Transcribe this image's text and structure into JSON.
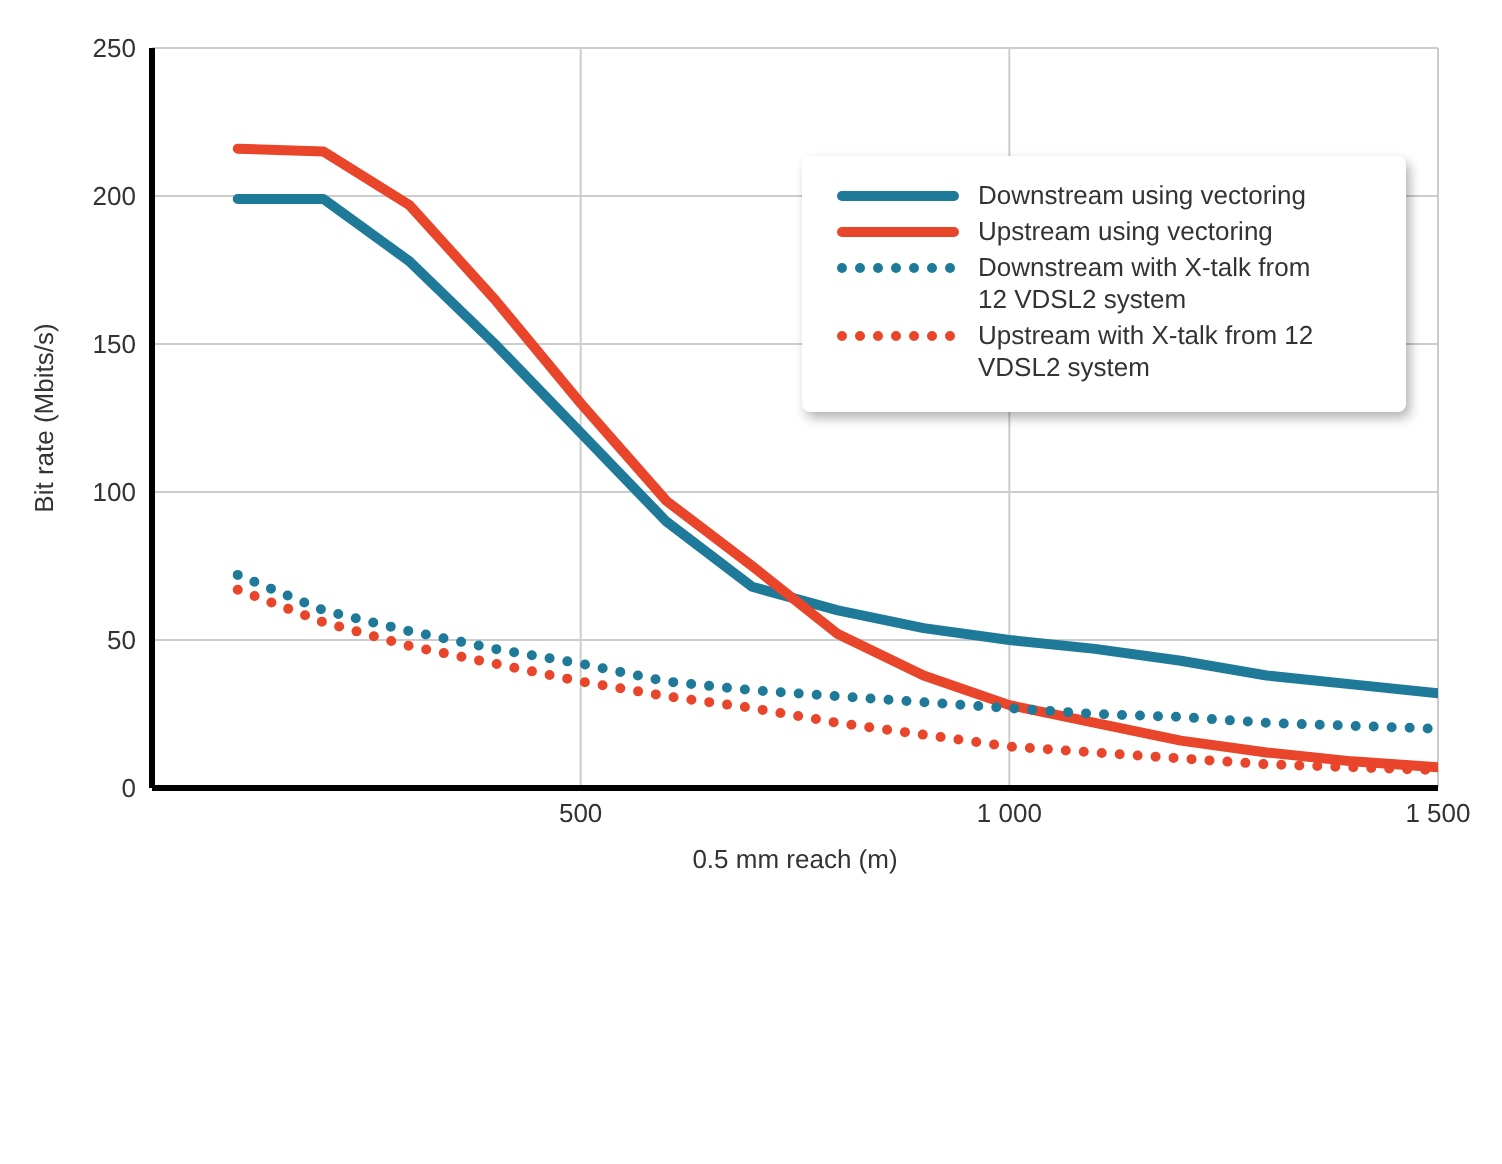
{
  "chart_data": {
    "type": "line",
    "xlabel": "0.5 mm reach (m)",
    "ylabel": "Bit rate (Mbits/s)",
    "x": [
      100,
      200,
      300,
      400,
      500,
      600,
      700,
      800,
      900,
      1000,
      1100,
      1200,
      1300,
      1400,
      1500
    ],
    "series": [
      {
        "name": "Downstream using vectoring",
        "color": "#1f7a99",
        "line_style": "solid",
        "values": [
          199,
          199,
          178,
          150,
          120,
          90,
          68,
          60,
          54,
          50,
          47,
          43,
          38,
          35,
          32
        ]
      },
      {
        "name": "Upstream using vectoring",
        "color": "#e8452a",
        "line_style": "solid",
        "values": [
          216,
          215,
          197,
          165,
          130,
          97,
          75,
          52,
          38,
          28,
          22,
          16,
          12,
          9,
          7
        ]
      },
      {
        "name": "Downstream with X-talk from 12 VDSL2 system",
        "color": "#1f7a99",
        "line_style": "dotted",
        "values": [
          72,
          60,
          53,
          47,
          42,
          36,
          33,
          31,
          29,
          27,
          25,
          24,
          22,
          21,
          20
        ]
      },
      {
        "name": "Upstream with X-talk from 12 VDSL2 system",
        "color": "#e8452a",
        "line_style": "dotted",
        "values": [
          67,
          56,
          48,
          42,
          36,
          31,
          27,
          22,
          18,
          14,
          12,
          10,
          8,
          7,
          6
        ]
      }
    ],
    "xlim": [
      0,
      1500
    ],
    "xticks": [
      500,
      {
        "value": 1000,
        "label": "1 000"
      },
      {
        "value": 1500,
        "label": "1 500"
      }
    ],
    "ylim": [
      0,
      250
    ],
    "yticks": [
      0,
      50,
      100,
      150,
      200,
      250
    ],
    "grid": true,
    "legend": "top right",
    "marker": "none"
  }
}
